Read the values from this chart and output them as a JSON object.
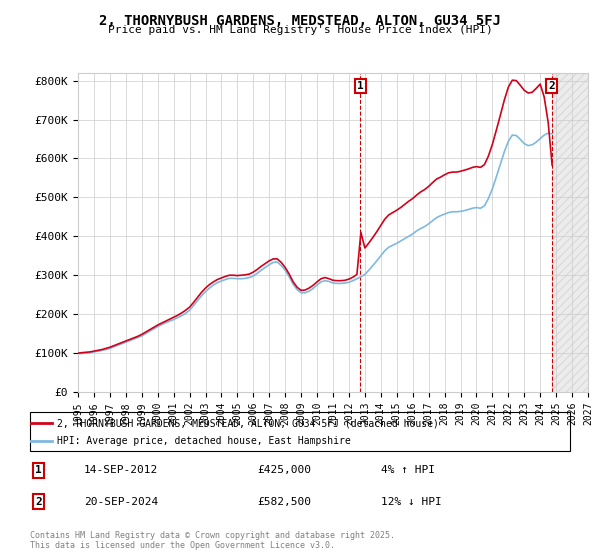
{
  "title": "2, THORNYBUSH GARDENS, MEDSTEAD, ALTON, GU34 5FJ",
  "subtitle": "Price paid vs. HM Land Registry's House Price Index (HPI)",
  "ylabel_ticks": [
    "£0",
    "£100K",
    "£200K",
    "£300K",
    "£400K",
    "£500K",
    "£600K",
    "£700K",
    "£800K"
  ],
  "ytick_vals": [
    0,
    100000,
    200000,
    300000,
    400000,
    500000,
    600000,
    700000,
    800000
  ],
  "ylim": [
    0,
    820000
  ],
  "xlim_start": 1995.0,
  "xlim_end": 2027.0,
  "xtick_years": [
    1995,
    1996,
    1997,
    1998,
    1999,
    2000,
    2001,
    2002,
    2003,
    2004,
    2005,
    2006,
    2007,
    2008,
    2009,
    2010,
    2011,
    2012,
    2013,
    2014,
    2015,
    2016,
    2017,
    2018,
    2019,
    2020,
    2021,
    2022,
    2023,
    2024,
    2025,
    2026,
    2027
  ],
  "line_color_red": "#d0021b",
  "line_color_blue": "#7eb9e0",
  "background_color": "#ffffff",
  "grid_color": "#cccccc",
  "annotation_box_color": "#cc0000",
  "marker1_x": 2012.71,
  "marker1_y": 425000,
  "marker1_label": "1",
  "marker2_x": 2024.72,
  "marker2_y": 582500,
  "marker2_label": "2",
  "legend_label_red": "2, THORNYBUSH GARDENS, MEDSTEAD, ALTON, GU34 5FJ (detached house)",
  "legend_label_blue": "HPI: Average price, detached house, East Hampshire",
  "annotation1_date": "14-SEP-2012",
  "annotation1_price": "£425,000",
  "annotation1_hpi": "4% ↑ HPI",
  "annotation2_date": "20-SEP-2024",
  "annotation2_price": "£582,500",
  "annotation2_hpi": "12% ↓ HPI",
  "footer": "Contains HM Land Registry data © Crown copyright and database right 2025.\nThis data is licensed under the Open Government Licence v3.0.",
  "hpi_data_x": [
    1995.0,
    1995.25,
    1995.5,
    1995.75,
    1996.0,
    1996.25,
    1996.5,
    1996.75,
    1997.0,
    1997.25,
    1997.5,
    1997.75,
    1998.0,
    1998.25,
    1998.5,
    1998.75,
    1999.0,
    1999.25,
    1999.5,
    1999.75,
    2000.0,
    2000.25,
    2000.5,
    2000.75,
    2001.0,
    2001.25,
    2001.5,
    2001.75,
    2002.0,
    2002.25,
    2002.5,
    2002.75,
    2003.0,
    2003.25,
    2003.5,
    2003.75,
    2004.0,
    2004.25,
    2004.5,
    2004.75,
    2005.0,
    2005.25,
    2005.5,
    2005.75,
    2006.0,
    2006.25,
    2006.5,
    2006.75,
    2007.0,
    2007.25,
    2007.5,
    2007.75,
    2008.0,
    2008.25,
    2008.5,
    2008.75,
    2009.0,
    2009.25,
    2009.5,
    2009.75,
    2010.0,
    2010.25,
    2010.5,
    2010.75,
    2011.0,
    2011.25,
    2011.5,
    2011.75,
    2012.0,
    2012.25,
    2012.5,
    2012.75,
    2013.0,
    2013.25,
    2013.5,
    2013.75,
    2014.0,
    2014.25,
    2014.5,
    2014.75,
    2015.0,
    2015.25,
    2015.5,
    2015.75,
    2016.0,
    2016.25,
    2016.5,
    2016.75,
    2017.0,
    2017.25,
    2017.5,
    2017.75,
    2018.0,
    2018.25,
    2018.5,
    2018.75,
    2019.0,
    2019.25,
    2019.5,
    2019.75,
    2020.0,
    2020.25,
    2020.5,
    2020.75,
    2021.0,
    2021.25,
    2021.5,
    2021.75,
    2022.0,
    2022.25,
    2022.5,
    2022.75,
    2023.0,
    2023.25,
    2023.5,
    2023.75,
    2024.0,
    2024.25,
    2024.5,
    2024.75
  ],
  "hpi_data_y": [
    98000,
    99000,
    100000,
    101000,
    103000,
    105000,
    107000,
    109000,
    112000,
    116000,
    120000,
    124000,
    128000,
    132000,
    136000,
    140000,
    144000,
    150000,
    156000,
    162000,
    168000,
    173000,
    178000,
    182000,
    186000,
    191000,
    196000,
    202000,
    210000,
    222000,
    235000,
    247000,
    258000,
    267000,
    275000,
    281000,
    285000,
    289000,
    292000,
    292000,
    291000,
    291000,
    292000,
    294000,
    298000,
    305000,
    313000,
    320000,
    327000,
    333000,
    334000,
    325000,
    313000,
    296000,
    277000,
    263000,
    255000,
    255000,
    259000,
    266000,
    275000,
    283000,
    286000,
    284000,
    280000,
    279000,
    279000,
    280000,
    282000,
    286000,
    291000,
    296000,
    302000,
    313000,
    325000,
    337000,
    350000,
    363000,
    372000,
    377000,
    382000,
    388000,
    394000,
    400000,
    406000,
    414000,
    420000,
    425000,
    432000,
    440000,
    448000,
    453000,
    457000,
    461000,
    463000,
    463000,
    464000,
    466000,
    469000,
    472000,
    474000,
    472000,
    478000,
    497000,
    522000,
    553000,
    585000,
    617000,
    644000,
    660000,
    659000,
    649000,
    638000,
    633000,
    635000,
    642000,
    651000,
    660000,
    665000,
    663000
  ],
  "price_data_x": [
    1995.0,
    1995.25,
    1995.5,
    1995.75,
    1996.0,
    1996.25,
    1996.5,
    1996.75,
    1997.0,
    1997.25,
    1997.5,
    1997.75,
    1998.0,
    1998.25,
    1998.5,
    1998.75,
    1999.0,
    1999.25,
    1999.5,
    1999.75,
    2000.0,
    2000.25,
    2000.5,
    2000.75,
    2001.0,
    2001.25,
    2001.5,
    2001.75,
    2002.0,
    2002.25,
    2002.5,
    2002.75,
    2003.0,
    2003.25,
    2003.5,
    2003.75,
    2004.0,
    2004.25,
    2004.5,
    2004.75,
    2005.0,
    2005.25,
    2005.5,
    2005.75,
    2006.0,
    2006.25,
    2006.5,
    2006.75,
    2007.0,
    2007.25,
    2007.5,
    2007.75,
    2008.0,
    2008.25,
    2008.5,
    2008.75,
    2009.0,
    2009.25,
    2009.5,
    2009.75,
    2010.0,
    2010.25,
    2010.5,
    2010.75,
    2011.0,
    2011.25,
    2011.5,
    2011.75,
    2012.0,
    2012.25,
    2012.5,
    2012.75,
    2013.0,
    2013.25,
    2013.5,
    2013.75,
    2014.0,
    2014.25,
    2014.5,
    2014.75,
    2015.0,
    2015.25,
    2015.5,
    2015.75,
    2016.0,
    2016.25,
    2016.5,
    2016.75,
    2017.0,
    2017.25,
    2017.5,
    2017.75,
    2018.0,
    2018.25,
    2018.5,
    2018.75,
    2019.0,
    2019.25,
    2019.5,
    2019.75,
    2020.0,
    2020.25,
    2020.5,
    2020.75,
    2021.0,
    2021.25,
    2021.5,
    2021.75,
    2022.0,
    2022.25,
    2022.5,
    2022.75,
    2023.0,
    2023.25,
    2023.5,
    2023.75,
    2024.0,
    2024.25,
    2024.5,
    2024.75
  ],
  "price_data_y": [
    100000,
    101000,
    102000,
    103000,
    105000,
    107000,
    109000,
    112000,
    115000,
    119000,
    123000,
    127000,
    131000,
    135000,
    139000,
    143000,
    148000,
    154000,
    160000,
    166000,
    172000,
    177000,
    182000,
    187000,
    192000,
    197000,
    203000,
    210000,
    218000,
    230000,
    243000,
    256000,
    267000,
    276000,
    283000,
    289000,
    293000,
    297000,
    300000,
    300000,
    299000,
    300000,
    301000,
    303000,
    308000,
    315000,
    323000,
    330000,
    337000,
    342000,
    342000,
    333000,
    320000,
    303000,
    283000,
    269000,
    261000,
    262000,
    267000,
    274000,
    283000,
    291000,
    294000,
    291000,
    287000,
    286000,
    286000,
    287000,
    290000,
    295000,
    302000,
    410000,
    370000,
    383000,
    397000,
    412000,
    428000,
    444000,
    455000,
    461000,
    467000,
    474000,
    482000,
    490000,
    497000,
    506000,
    514000,
    520000,
    528000,
    538000,
    547000,
    552000,
    558000,
    563000,
    565000,
    565000,
    567000,
    570000,
    573000,
    577000,
    579000,
    577000,
    584000,
    606000,
    636000,
    673000,
    711000,
    750000,
    783000,
    801000,
    800000,
    788000,
    775000,
    768000,
    770000,
    780000,
    791000,
    758000,
    693000,
    582500
  ]
}
